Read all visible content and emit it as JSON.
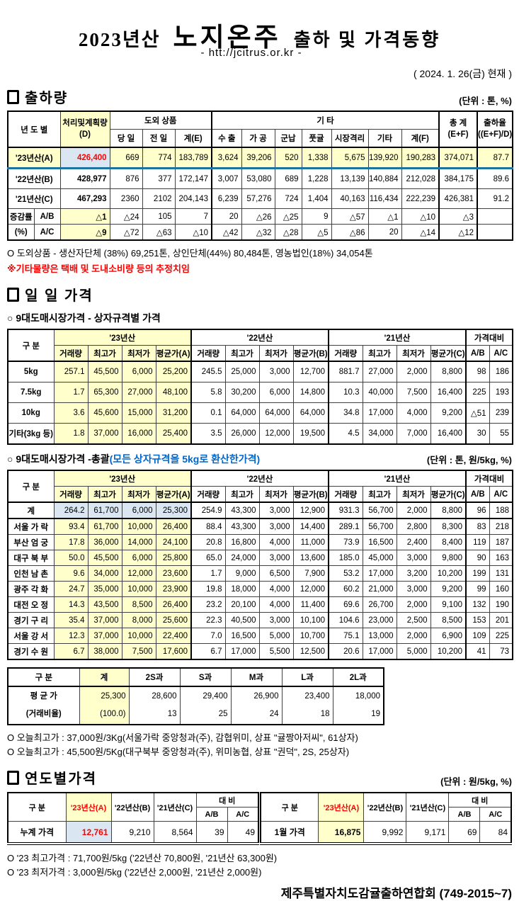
{
  "title": {
    "year": "2023년산",
    "product": "노지온주",
    "suffix": "출하 및 가격동향",
    "url": "- htt://jcitrus.or.kr -",
    "date": "( 2024.  1. 26(금) 현재 )"
  },
  "colors": {
    "yellow_highlight": "#FFFFCC",
    "blue_highlight": "#DAE7F2",
    "accent_red": "#FF0000",
    "accent_line_blue": "#1C74A1",
    "note_blue": "#0066CC"
  },
  "shipment": {
    "heading": "출하량",
    "unit": "(단위 : 톤, %)",
    "h": {
      "yeondo": "년 도 별",
      "plan": "처리및계획량\n(D)",
      "dooe": "도외 상품",
      "gita": "기             타",
      "total": "총  계\n(E+F)",
      "rate": "출하율\n((E+F)/D)"
    },
    "cols": [
      "당 일",
      "전 일",
      "계(E)",
      "수 출",
      "가 공",
      "군납",
      "풋귤",
      "시장격리",
      "기타",
      "계(F)"
    ],
    "rows": [
      {
        "label": "'23년산(A)",
        "plan": "426,400",
        "v": [
          "669",
          "774",
          "183,789",
          "3,624",
          "39,206",
          "520",
          "1,338",
          "5,675",
          "139,920",
          "190,283",
          "374,071",
          "87.7"
        ]
      },
      {
        "label": "'22년산(B)",
        "plan": "428,977",
        "v": [
          "876",
          "377",
          "172,147",
          "3,007",
          "53,080",
          "689",
          "1,228",
          "13,139",
          "140,884",
          "212,028",
          "384,175",
          "89.6"
        ]
      },
      {
        "label": "'21년산(C)",
        "plan": "467,293",
        "v": [
          "2360",
          "2102",
          "204,143",
          "6,239",
          "57,276",
          "724",
          "1,404",
          "40,163",
          "116,434",
          "222,239",
          "426,381",
          "91.2"
        ]
      },
      {
        "label": "증감률",
        "label2": "A/B",
        "plan": "△1",
        "v": [
          "△24",
          "105",
          "7",
          "20",
          "△26",
          "△25",
          "9",
          "△57",
          "△1",
          "△10",
          "△3",
          ""
        ]
      },
      {
        "label": "(%)",
        "label2": "A/C",
        "plan": "△9",
        "v": [
          "△72",
          "△63",
          "△10",
          "△42",
          "△32",
          "△28",
          "△5",
          "△86",
          "20",
          "△14",
          "△12",
          ""
        ]
      }
    ],
    "note1": "O 도외상품 - 생산자단체 (38%) 69,251톤, 상인단체(44%) 80,484톤, 영농법인(18%) 34,054톤",
    "note2": "※기타물량은 택배 및 도내소비량 등의 추정치임"
  },
  "daily": {
    "heading": "일 일 가격",
    "sub1": "○ 9대도매시장가격 - 상자규격별 가격",
    "sub2": "○ 9대도매시장가격 -총괄",
    "sub2_note": "(모든 상자규격을 5kg로 환산한가격)",
    "unit": "(단위 : 톤, 원/5kg, %)",
    "gubun": "구  분",
    "groups": [
      "'23년산",
      "'22년산",
      "'21년산",
      "가격대비"
    ],
    "cols": [
      "거래량",
      "최고가",
      "최저가",
      "평균가(A)",
      "거래량",
      "최고가",
      "최저가",
      "평균가(B)",
      "거래량",
      "최고가",
      "최저가",
      "평균가(C)",
      "A/B",
      "A/C"
    ],
    "box_rows": [
      {
        "label": "5kg",
        "v": [
          "257.1",
          "45,500",
          "6,000",
          "25,200",
          "245.5",
          "25,000",
          "3,000",
          "12,700",
          "881.7",
          "27,000",
          "2,000",
          "8,800",
          "98",
          "186"
        ]
      },
      {
        "label": "7.5kg",
        "v": [
          "1.7",
          "65,300",
          "27,000",
          "48,100",
          "5.8",
          "30,200",
          "6,000",
          "14,800",
          "10.3",
          "40,000",
          "7,500",
          "16,400",
          "225",
          "193"
        ]
      },
      {
        "label": "10kg",
        "v": [
          "3.6",
          "45,600",
          "15,000",
          "31,200",
          "0.1",
          "64,000",
          "64,000",
          "64,000",
          "34.8",
          "17,000",
          "4,000",
          "9,200",
          "△51",
          "239"
        ]
      },
      {
        "label": "기타(3kg 등)",
        "v": [
          "1.8",
          "37,000",
          "16,000",
          "25,400",
          "3.5",
          "26,000",
          "12,000",
          "19,500",
          "4.5",
          "34,000",
          "7,000",
          "16,400",
          "30",
          "55"
        ]
      }
    ],
    "total_rows": [
      {
        "label": "계",
        "v": [
          "264.2",
          "61,700",
          "6,000",
          "25,300",
          "254.9",
          "43,300",
          "3,000",
          "12,900",
          "931.3",
          "56,700",
          "2,000",
          "8,800",
          "96",
          "188"
        ]
      },
      {
        "label": "서울 가 락",
        "v": [
          "93.4",
          "61,700",
          "10,000",
          "26,400",
          "88.4",
          "43,300",
          "3,000",
          "14,400",
          "289.1",
          "56,700",
          "2,800",
          "8,300",
          "83",
          "218"
        ]
      },
      {
        "label": "부산 엄 궁",
        "v": [
          "17.8",
          "36,000",
          "14,000",
          "24,100",
          "20.8",
          "16,800",
          "4,000",
          "11,000",
          "73.9",
          "16,500",
          "2,400",
          "8,400",
          "119",
          "187"
        ]
      },
      {
        "label": "대구 북 부",
        "v": [
          "50.0",
          "45,500",
          "6,000",
          "25,800",
          "65.0",
          "24,000",
          "3,000",
          "13,600",
          "185.0",
          "45,000",
          "3,000",
          "9,800",
          "90",
          "163"
        ]
      },
      {
        "label": "인천 남 촌",
        "v": [
          "9.6",
          "34,000",
          "12,000",
          "23,600",
          "1.7",
          "9,000",
          "6,500",
          "7,900",
          "53.2",
          "17,000",
          "3,200",
          "10,200",
          "199",
          "131"
        ]
      },
      {
        "label": "광주 각 화",
        "v": [
          "24.7",
          "35,000",
          "10,000",
          "23,900",
          "19.8",
          "18,000",
          "4,000",
          "12,000",
          "60.2",
          "21,000",
          "3,000",
          "9,200",
          "99",
          "160"
        ]
      },
      {
        "label": "대전 오 정",
        "v": [
          "14.3",
          "43,500",
          "8,500",
          "26,400",
          "23.2",
          "20,100",
          "4,000",
          "11,400",
          "69.6",
          "26,700",
          "2,000",
          "9,100",
          "132",
          "190"
        ]
      },
      {
        "label": "경기 구 리",
        "v": [
          "35.4",
          "37,000",
          "8,000",
          "25,600",
          "22.3",
          "40,500",
          "3,000",
          "10,100",
          "104.6",
          "23,000",
          "2,500",
          "8,500",
          "153",
          "201"
        ]
      },
      {
        "label": "서울 강 서",
        "v": [
          "12.3",
          "37,000",
          "10,000",
          "22,400",
          "7.0",
          "16,500",
          "5,000",
          "10,700",
          "75.1",
          "13,000",
          "2,000",
          "6,900",
          "109",
          "225"
        ]
      },
      {
        "label": "경기 수 원",
        "v": [
          "6.7",
          "38,000",
          "7,500",
          "17,600",
          "6.7",
          "17,000",
          "5,500",
          "12,500",
          "20.6",
          "17,000",
          "5,000",
          "10,200",
          "41",
          "73"
        ]
      }
    ]
  },
  "sizes": {
    "cols": [
      "구  분",
      "계",
      "2S과",
      "S과",
      "M과",
      "L과",
      "2L과"
    ],
    "label1": "평 균 가",
    "label2": "(거래비율)",
    "avg": [
      "25,300",
      "28,600",
      "29,400",
      "26,900",
      "23,400",
      "18,000"
    ],
    "ratio": [
      "(100.0)",
      "13",
      "25",
      "24",
      "18",
      "19"
    ]
  },
  "notes": {
    "high1": "O 오늘최고가  : 37,000원/3Kg(서울가락 중앙청과(주), 감협위미, 상표 \"귤짱아저씨\", 61상자)",
    "high2": "O 오늘최고가  : 45,500원/5Kg(대구북부 중앙청과(주), 위미농협, 상표 \"권덕\", 2S, 25상자)"
  },
  "yearly": {
    "heading": "연도별가격",
    "unit": "(단위 : 원/5kg, %)",
    "gubun": "구      분",
    "daebi": "대      비",
    "cols": [
      "'23년산(A)",
      "'22년산(B)",
      "'21년산(C)",
      "A/B",
      "A/C"
    ],
    "left_label": "누계 가격",
    "left": [
      "12,761",
      "9,210",
      "8,564",
      "39",
      "49"
    ],
    "right_label": "1월 가격",
    "right": [
      "16,875",
      "9,992",
      "9,171",
      "69",
      "84"
    ]
  },
  "footnotes": {
    "high": "O '23 최고가격 : 71,700원/5kg ('22년산 70,800원, '21년산 63,300원)",
    "low": "O '23 최저가격 :   3,000원/5kg ('22년산  2,000원, '21년산  2,000원)"
  },
  "footer": "제주특별자치도감귤출하연합회 (749-2015~7)"
}
